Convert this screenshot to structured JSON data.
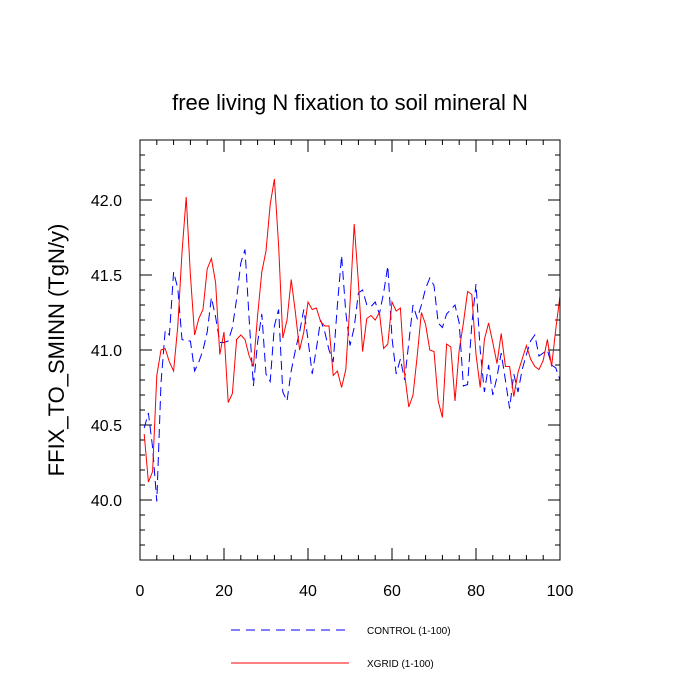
{
  "chart_data": {
    "type": "line",
    "title": "free living N fixation to soil mineral N",
    "xlabel": "",
    "ylabel": "FFIX_TO_SMINN  (TgN/y)",
    "xlim": [
      0,
      100
    ],
    "ylim": [
      39.6,
      42.4
    ],
    "xticks": [
      0,
      20,
      40,
      60,
      80,
      100
    ],
    "xtick_labels": [
      "0",
      "20",
      "40",
      "60",
      "80",
      "100"
    ],
    "yticks": [
      40.0,
      40.5,
      41.0,
      41.5,
      42.0
    ],
    "ytick_labels": [
      "40.0",
      "40.5",
      "41.0",
      "41.5",
      "42.0"
    ],
    "x": [
      1,
      2,
      3,
      4,
      5,
      6,
      7,
      8,
      9,
      10,
      11,
      12,
      13,
      14,
      15,
      16,
      17,
      18,
      19,
      20,
      21,
      22,
      23,
      24,
      25,
      26,
      27,
      28,
      29,
      30,
      31,
      32,
      33,
      34,
      35,
      36,
      37,
      38,
      39,
      40,
      41,
      42,
      43,
      44,
      45,
      46,
      47,
      48,
      49,
      50,
      51,
      52,
      53,
      54,
      55,
      56,
      57,
      58,
      59,
      60,
      61,
      62,
      63,
      64,
      65,
      66,
      67,
      68,
      69,
      70,
      71,
      72,
      73,
      74,
      75,
      76,
      77,
      78,
      79,
      80,
      81,
      82,
      83,
      84,
      85,
      86,
      87,
      88,
      89,
      90,
      91,
      92,
      93,
      94,
      95,
      96,
      97,
      98,
      99,
      100
    ],
    "series": [
      {
        "name": "CONTROL (1-100)",
        "color": "#0000ff",
        "style": "dashed",
        "values": [
          40.48,
          40.58,
          40.35,
          39.99,
          40.78,
          41.13,
          41.1,
          41.52,
          41.41,
          41.07,
          41.06,
          41.06,
          40.86,
          40.92,
          41.0,
          41.12,
          41.35,
          41.22,
          41.05,
          41.05,
          41.06,
          41.15,
          41.34,
          41.58,
          41.67,
          41.2,
          40.76,
          41.05,
          41.24,
          40.84,
          40.79,
          41.16,
          41.27,
          40.72,
          40.66,
          40.86,
          41.0,
          41.12,
          41.27,
          41.07,
          40.84,
          41.01,
          41.2,
          41.12,
          41.0,
          40.92,
          41.3,
          41.63,
          41.25,
          41.03,
          41.15,
          41.38,
          41.4,
          41.3,
          41.29,
          41.32,
          41.24,
          41.38,
          41.56,
          41.08,
          40.84,
          40.94,
          40.8,
          41.05,
          41.3,
          41.21,
          41.3,
          41.41,
          41.48,
          41.43,
          41.18,
          41.15,
          41.24,
          41.27,
          41.3,
          41.18,
          40.76,
          40.77,
          41.17,
          41.44,
          41.0,
          40.72,
          40.9,
          40.7,
          40.82,
          40.98,
          40.8,
          40.61,
          40.84,
          40.72,
          40.87,
          40.97,
          41.06,
          41.1,
          40.96,
          40.98,
          41.0,
          40.9,
          40.88,
          40.8
        ]
      },
      {
        "name": "XGRID (1-100)",
        "color": "#ff0000",
        "style": "solid",
        "values": [
          40.44,
          40.12,
          40.19,
          40.83,
          41.0,
          41.01,
          40.92,
          40.86,
          41.16,
          41.65,
          42.02,
          41.5,
          41.1,
          41.21,
          41.27,
          41.54,
          41.61,
          41.45,
          40.97,
          41.12,
          40.65,
          40.71,
          41.07,
          41.1,
          41.07,
          40.96,
          40.89,
          41.23,
          41.52,
          41.66,
          41.97,
          42.14,
          41.7,
          41.08,
          41.2,
          41.47,
          41.25,
          41.0,
          41.12,
          41.32,
          41.27,
          41.28,
          41.19,
          41.16,
          41.16,
          40.83,
          40.86,
          40.75,
          40.87,
          41.31,
          41.84,
          41.45,
          40.99,
          41.21,
          41.23,
          41.2,
          41.25,
          41.01,
          41.04,
          41.32,
          41.26,
          41.28,
          40.84,
          40.62,
          40.7,
          40.96,
          41.25,
          41.17,
          41.0,
          40.99,
          40.66,
          40.55,
          41.04,
          41.02,
          40.66,
          41.0,
          41.18,
          41.39,
          41.37,
          40.97,
          40.75,
          41.07,
          41.18,
          41.05,
          40.91,
          41.11,
          40.89,
          40.89,
          40.69,
          40.85,
          40.94,
          41.03,
          40.94,
          40.89,
          40.87,
          40.93,
          41.07,
          40.89,
          41.14,
          41.36
        ]
      }
    ],
    "legend": {
      "placement": "bottom",
      "entries": [
        "CONTROL (1-100)",
        "XGRID (1-100)"
      ]
    }
  }
}
